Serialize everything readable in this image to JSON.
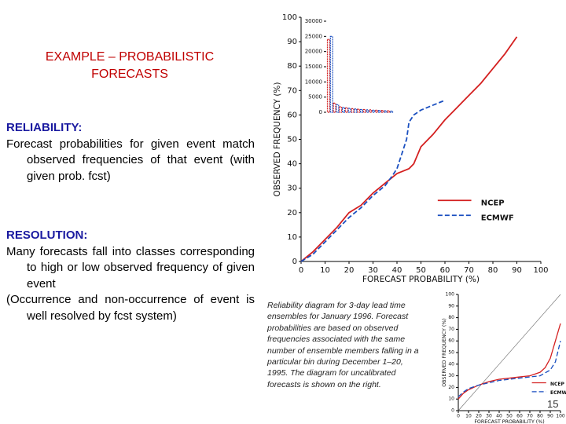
{
  "slide": {
    "title": "EXAMPLE – PROBABILISTIC FORECASTS",
    "reliability_heading": "RELIABILITY:",
    "reliability_text": "Forecast probabilities for given event match observed frequencies of that event (with given prob. fcst)",
    "resolution_heading": "RESOLUTION:",
    "resolution_text_1": "Many forecasts fall into classes corresponding to high or low observed frequency of given event",
    "resolution_text_2": "(Occurrence and non-occurrence of event is well resolved by fcst system)",
    "caption": "Reliability diagram for 3-day lead time ensembles for January 1996. Forecast probabilities are based on observed frequencies associated with the same number of ensemble members falling in a particular bin during December 1–20, 1995. The diagram for uncalibrated forecasts is shown on the right.",
    "page_number": "15"
  },
  "chart_data": [
    {
      "type": "line",
      "xlabel": "FORECAST PROBABILITY (%)",
      "ylabel": "OBSERVED FREQUENCY (%)",
      "xlim": [
        0,
        100
      ],
      "ylim": [
        0,
        100
      ],
      "xticks": [
        0,
        10,
        20,
        30,
        40,
        50,
        60,
        70,
        80,
        90,
        100
      ],
      "yticks": [
        0,
        10,
        20,
        30,
        40,
        50,
        60,
        70,
        80,
        90,
        100
      ],
      "legend": "lower right",
      "series": [
        {
          "name": "NCEP",
          "color": "#d42020",
          "dash": false,
          "x": [
            0,
            5,
            10,
            15,
            20,
            25,
            30,
            35,
            40,
            45,
            47,
            50,
            55,
            60,
            65,
            70,
            75,
            80,
            85,
            90
          ],
          "values": [
            0,
            4,
            9,
            14,
            20,
            23,
            28,
            32,
            36,
            38,
            40,
            47,
            52,
            58,
            63,
            68,
            73,
            79,
            85,
            92
          ]
        },
        {
          "name": "ECMWF",
          "color": "#1a4fc0",
          "dash": true,
          "x": [
            0,
            5,
            10,
            15,
            20,
            25,
            30,
            35,
            38,
            40,
            42,
            44,
            45,
            47,
            50,
            55,
            60
          ],
          "values": [
            0,
            3,
            8,
            13,
            18,
            22,
            27,
            31,
            35,
            38,
            44,
            50,
            57,
            60,
            62,
            64,
            66
          ]
        }
      ]
    },
    {
      "type": "bar",
      "categories": [
        null,
        null,
        null,
        null,
        null,
        null,
        null,
        null,
        null,
        null,
        null
      ],
      "ylim": [
        0,
        30000
      ],
      "yticks": [
        0,
        5000,
        10000,
        15000,
        20000,
        25000,
        30000
      ],
      "series": [
        {
          "name": "NCEP",
          "color": "#d42020",
          "values": [
            24000,
            3000,
            1800,
            1500,
            1200,
            1000,
            900,
            800,
            700,
            600,
            500
          ]
        },
        {
          "name": "ECMWF",
          "color": "#1a4fc0",
          "values": [
            25000,
            2500,
            1600,
            1300,
            1100,
            900,
            800,
            700,
            600,
            500,
            400
          ]
        }
      ]
    },
    {
      "type": "line",
      "xlabel": "FORECAST PROBABILITY (%)",
      "ylabel": "OBSERVED FREQUENCY (%)",
      "xlim": [
        0,
        100
      ],
      "ylim": [
        0,
        100
      ],
      "xticks": [
        0,
        10,
        20,
        30,
        40,
        50,
        60,
        70,
        80,
        90,
        100
      ],
      "yticks": [
        0,
        10,
        20,
        30,
        40,
        50,
        60,
        70,
        80,
        90,
        100
      ],
      "legend": "lower right",
      "series": [
        {
          "name": "NCEP",
          "color": "#d42020",
          "dash": false,
          "x": [
            0,
            5,
            10,
            20,
            30,
            40,
            50,
            60,
            70,
            80,
            85,
            90,
            95,
            100
          ],
          "values": [
            10,
            15,
            18,
            22,
            25,
            27,
            28,
            29,
            30,
            33,
            37,
            45,
            60,
            75
          ]
        },
        {
          "name": "ECMWF",
          "color": "#1a4fc0",
          "dash": true,
          "x": [
            0,
            5,
            10,
            20,
            30,
            40,
            50,
            60,
            70,
            80,
            90,
            95,
            100
          ],
          "values": [
            12,
            16,
            19,
            22,
            24,
            26,
            27,
            28,
            29,
            30,
            35,
            42,
            60
          ]
        }
      ]
    }
  ]
}
